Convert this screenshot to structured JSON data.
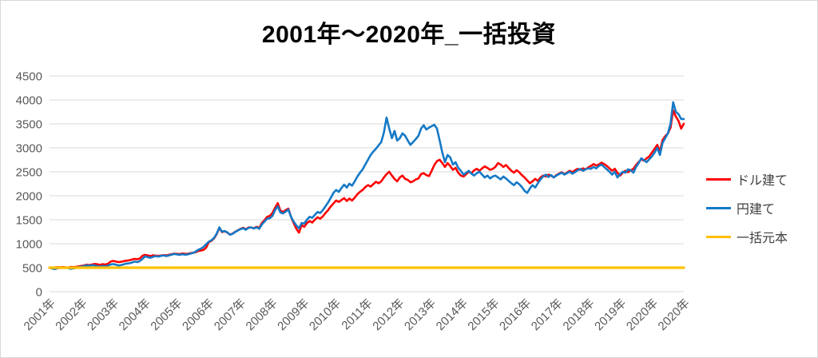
{
  "title": "2001年～2020年_一括投資",
  "chart_data": {
    "type": "line",
    "title": "2001年～2020年_一括投資",
    "xlabel": "",
    "ylabel": "",
    "ylim": [
      0,
      4500
    ],
    "y_ticks": [
      0,
      500,
      1000,
      1500,
      2000,
      2500,
      3000,
      3500,
      4000,
      4500
    ],
    "x_tick_labels": [
      "2001年",
      "2002年",
      "2003年",
      "2004年",
      "2005年",
      "2006年",
      "2007年",
      "2008年",
      "2009年",
      "2010年",
      "2011年",
      "2012年",
      "2013年",
      "2014年",
      "2015年",
      "2016年",
      "2017年",
      "2018年",
      "2019年",
      "2020年",
      "2020年"
    ],
    "x_unit": "monthly points, Jan 2001 - Dec 2020",
    "grid": "horizontal",
    "grid_color": "#d9d9d9",
    "axis_label_color": "#595959",
    "legend_position": "right",
    "series": [
      {
        "name": "ドル建て",
        "color": "#fe0000",
        "values": [
          500,
          497,
          505,
          512,
          506,
          514,
          509,
          503,
          516,
          511,
          519,
          527,
          536,
          549,
          561,
          553,
          566,
          579,
          571,
          558,
          573,
          566,
          581,
          626,
          641,
          629,
          616,
          623,
          636,
          646,
          653,
          669,
          683,
          676,
          691,
          749,
          769,
          756,
          743,
          759,
          751,
          746,
          753,
          761,
          756,
          769,
          781,
          793,
          789,
          781,
          796,
          791,
          789,
          801,
          811,
          821,
          846,
          859,
          871,
          916,
          1031,
          1061,
          1111,
          1201,
          1331,
          1241,
          1261,
          1231,
          1191,
          1211,
          1251,
          1281,
          1311,
          1331,
          1301,
          1341,
          1336,
          1321,
          1351,
          1331,
          1431,
          1491,
          1561,
          1581,
          1641,
          1751,
          1846,
          1691,
          1661,
          1701,
          1731,
          1561,
          1431,
          1311,
          1231,
          1391,
          1351,
          1431,
          1471,
          1441,
          1501,
          1551,
          1521,
          1571,
          1641,
          1701,
          1781,
          1841,
          1901,
          1871,
          1911,
          1951,
          1891,
          1941,
          1901,
          1961,
          2031,
          2081,
          2121,
          2181,
          2221,
          2191,
          2241,
          2291,
          2261,
          2301,
          2381,
          2451,
          2501,
          2421,
          2351,
          2301,
          2381,
          2421,
          2351,
          2331,
          2281,
          2301,
          2341,
          2361,
          2451,
          2471,
          2431,
          2411,
          2521,
          2641,
          2721,
          2751,
          2681,
          2601,
          2681,
          2621,
          2541,
          2581,
          2481,
          2421,
          2401,
          2451,
          2501,
          2471,
          2531,
          2561,
          2521,
          2571,
          2611,
          2581,
          2541,
          2561,
          2601,
          2681,
          2651,
          2601,
          2641,
          2581,
          2521,
          2481,
          2531,
          2491,
          2431,
          2381,
          2321,
          2261,
          2301,
          2351,
          2311,
          2381,
          2421,
          2401,
          2441,
          2421,
          2381,
          2431,
          2461,
          2491,
          2451,
          2481,
          2521,
          2491,
          2531,
          2561,
          2541,
          2571,
          2551,
          2591,
          2621,
          2661,
          2631,
          2651,
          2691,
          2661,
          2621,
          2571,
          2521,
          2561,
          2481,
          2421,
          2481,
          2521,
          2491,
          2531,
          2561,
          2641,
          2701,
          2761,
          2731,
          2781,
          2821,
          2901,
          2981,
          3061,
          2921,
          3161,
          3241,
          3301,
          3421,
          3781,
          3651,
          3561,
          3401,
          3501
        ]
      },
      {
        "name": "円建て",
        "color": "#1579c6",
        "values": [
          500,
          481,
          472,
          488,
          496,
          506,
          498,
          491,
          479,
          486,
          496,
          511,
          521,
          536,
          549,
          541,
          553,
          546,
          531,
          523,
          536,
          529,
          541,
          566,
          576,
          561,
          546,
          556,
          571,
          586,
          591,
          606,
          626,
          616,
          636,
          681,
          736,
          721,
          706,
          726,
          741,
          731,
          746,
          756,
          741,
          756,
          771,
          786,
          776,
          766,
          781,
          771,
          776,
          791,
          806,
          831,
          871,
          896,
          931,
          986,
          1041,
          1071,
          1121,
          1211,
          1341,
          1251,
          1266,
          1236,
          1186,
          1206,
          1246,
          1276,
          1306,
          1321,
          1291,
          1331,
          1341,
          1316,
          1341,
          1311,
          1401,
          1461,
          1521,
          1531,
          1581,
          1701,
          1781,
          1651,
          1631,
          1671,
          1711,
          1561,
          1461,
          1381,
          1321,
          1431,
          1421,
          1501,
          1561,
          1541,
          1601,
          1661,
          1641,
          1701,
          1781,
          1861,
          1961,
          2061,
          2121,
          2081,
          2161,
          2231,
          2171,
          2251,
          2211,
          2301,
          2401,
          2481,
          2551,
          2651,
          2751,
          2851,
          2921,
          2981,
          3051,
          3121,
          3321,
          3631,
          3401,
          3201,
          3351,
          3151,
          3201,
          3301,
          3251,
          3151,
          3061,
          3121,
          3181,
          3251,
          3401,
          3471,
          3381,
          3421,
          3451,
          3481,
          3401,
          3151,
          2901,
          2701,
          2851,
          2801,
          2651,
          2701,
          2581,
          2521,
          2441,
          2481,
          2521,
          2461,
          2421,
          2471,
          2501,
          2441,
          2381,
          2421,
          2361,
          2401,
          2421,
          2381,
          2341,
          2401,
          2361,
          2311,
          2261,
          2221,
          2281,
          2241,
          2181,
          2101,
          2061,
          2151,
          2221,
          2171,
          2261,
          2341,
          2401,
          2441,
          2391,
          2431,
          2381,
          2421,
          2451,
          2481,
          2441,
          2471,
          2501,
          2461,
          2491,
          2531,
          2561,
          2521,
          2551,
          2571,
          2561,
          2601,
          2571,
          2621,
          2651,
          2601,
          2551,
          2501,
          2441,
          2501,
          2381,
          2451,
          2501,
          2481,
          2551,
          2531,
          2481,
          2601,
          2681,
          2781,
          2741,
          2701,
          2761,
          2821,
          2901,
          3001,
          2851,
          3101,
          3201,
          3301,
          3501,
          3951,
          3751,
          3701,
          3601,
          3601
        ]
      },
      {
        "name": "一括元本",
        "color": "#ffc000",
        "constant": true,
        "values": [
          500,
          500
        ]
      }
    ]
  }
}
